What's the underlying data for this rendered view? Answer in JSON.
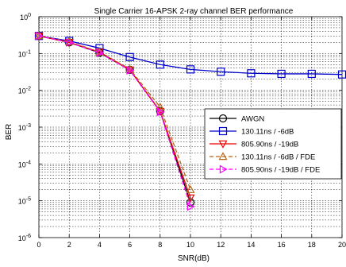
{
  "chart_data": {
    "type": "line",
    "title": "Single Carrier 16-APSK 2-ray channel BER performance",
    "xlabel": "SNR(dB)",
    "ylabel": "BER",
    "xlim": [
      0,
      20
    ],
    "ylim": [
      1e-06,
      1
    ],
    "yscale": "log",
    "grid": true,
    "legend_position": "center-right",
    "x_ticks": [
      "0",
      "2",
      "4",
      "6",
      "8",
      "10",
      "12",
      "14",
      "16",
      "18",
      "20"
    ],
    "y_ticks": [
      {
        "base": "10",
        "exp": "0",
        "value": 1
      },
      {
        "base": "10",
        "exp": "-1",
        "value": 0.1
      },
      {
        "base": "10",
        "exp": "-2",
        "value": 0.01
      },
      {
        "base": "10",
        "exp": "-3",
        "value": 0.001
      },
      {
        "base": "10",
        "exp": "-4",
        "value": 0.0001
      },
      {
        "base": "10",
        "exp": "-5",
        "value": 1e-05
      },
      {
        "base": "10",
        "exp": "-6",
        "value": 1e-06
      }
    ],
    "series": [
      {
        "name": "AWGN",
        "color": "#000000",
        "marker": "circle",
        "dash": "solid",
        "x": [
          0,
          2,
          4,
          6,
          8,
          10
        ],
        "y": [
          0.3,
          0.2,
          0.105,
          0.036,
          0.0027,
          9e-06
        ]
      },
      {
        "name": "130.11ns / -6dB",
        "color": "#0000cc",
        "marker": "square",
        "dash": "solid",
        "x": [
          0,
          2,
          4,
          6,
          8,
          10,
          12,
          14,
          16,
          18,
          20
        ],
        "y": [
          0.3,
          0.22,
          0.14,
          0.08,
          0.05,
          0.037,
          0.032,
          0.029,
          0.028,
          0.028,
          0.027
        ]
      },
      {
        "name": "805.90ns / -19dB",
        "color": "#ee0000",
        "marker": "triangle-down",
        "dash": "solid",
        "x": [
          0,
          2,
          4,
          6,
          8,
          10
        ],
        "y": [
          0.3,
          0.2,
          0.11,
          0.036,
          0.0027,
          1.2e-05
        ]
      },
      {
        "name": "130.11ns / -6dB / FDE",
        "color": "#b5651d",
        "marker": "triangle-up",
        "dash": "dashed",
        "x": [
          0,
          2,
          4,
          6,
          8,
          10
        ],
        "y": [
          0.3,
          0.21,
          0.11,
          0.038,
          0.0035,
          2e-05
        ]
      },
      {
        "name": "805.90ns / -19dB / FDE",
        "color": "#ff00ff",
        "marker": "triangle-right",
        "dash": "dashed",
        "x": [
          0,
          2,
          4,
          6,
          8,
          10
        ],
        "y": [
          0.3,
          0.2,
          0.105,
          0.035,
          0.0026,
          7e-06
        ]
      }
    ]
  }
}
